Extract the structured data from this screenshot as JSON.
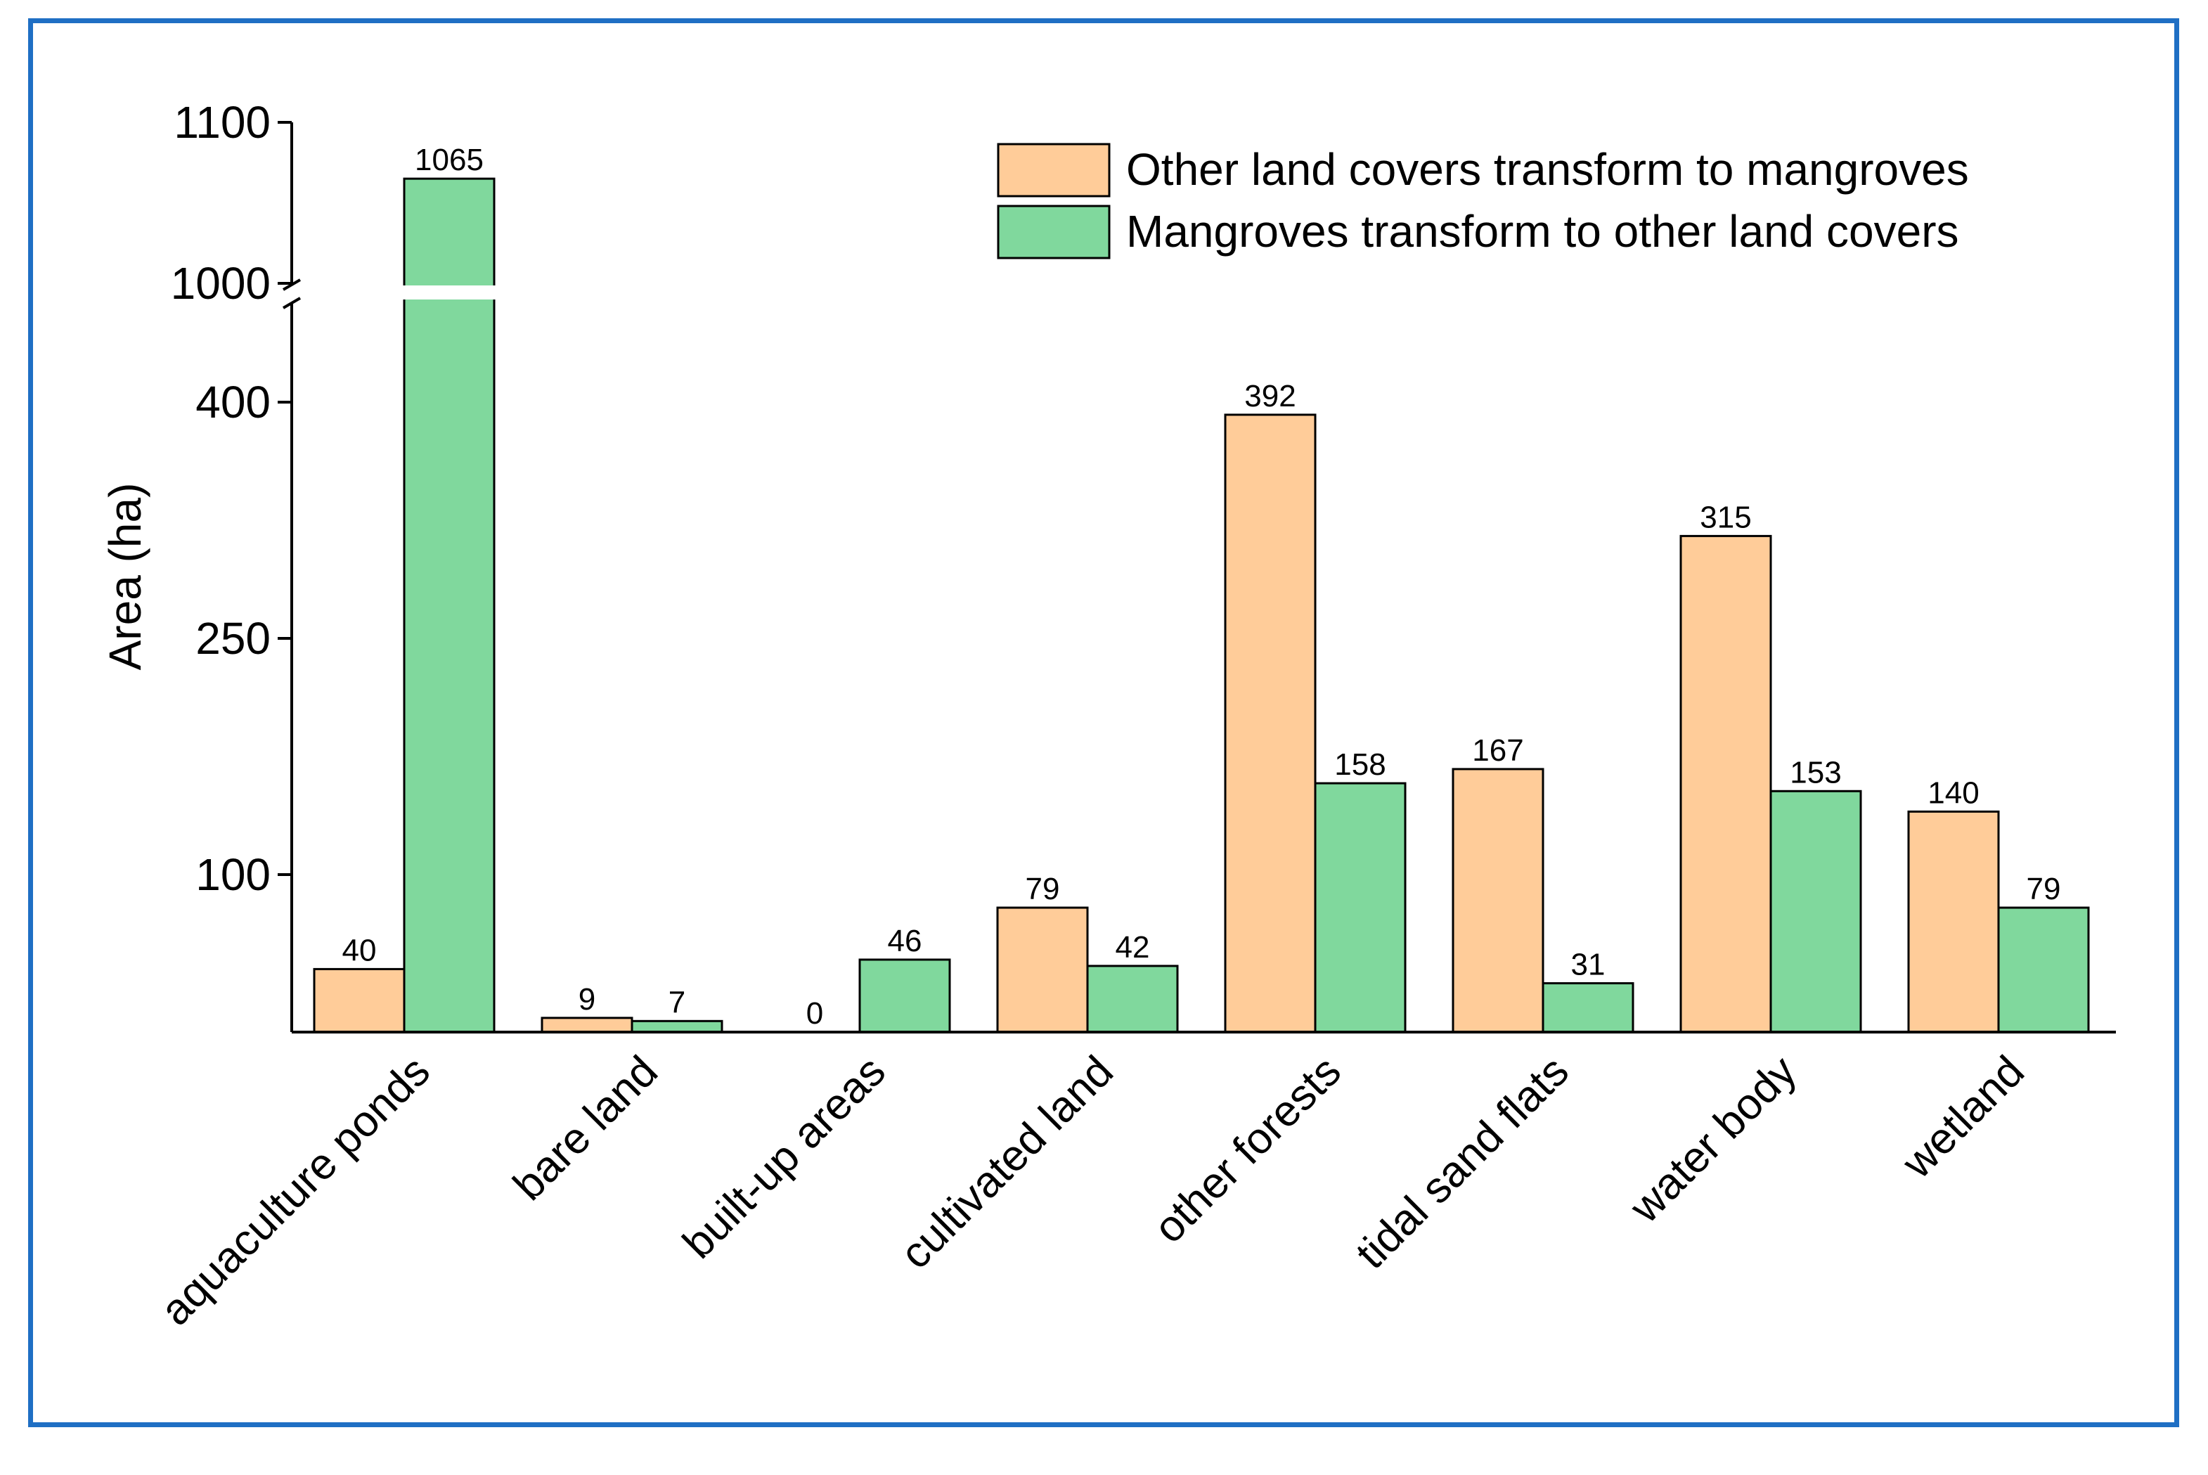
{
  "chart_data": {
    "type": "bar",
    "title": "",
    "xlabel": "",
    "ylabel": "Area (ha)",
    "ylim": [
      0,
      1100
    ],
    "y_axis_break": {
      "lower_max": 450,
      "upper_min": 1000,
      "upper_max": 1100
    },
    "y_ticks": [
      {
        "value": 100,
        "label": "100"
      },
      {
        "value": 250,
        "label": "250"
      },
      {
        "value": 400,
        "label": "400"
      },
      {
        "value": 1000,
        "label": "1000"
      },
      {
        "value": 1100,
        "label": "1100"
      }
    ],
    "categories": [
      "aquaculture ponds",
      "bare land",
      "built-up areas",
      "cultivated land",
      "other forests",
      "tidal sand flats",
      "water body",
      "wetland"
    ],
    "series": [
      {
        "name": "Other land covers transform to mangroves",
        "color": "#ffcc99",
        "values": [
          40,
          9,
          0,
          79,
          392,
          167,
          315,
          140
        ],
        "labels": [
          "40",
          "9",
          "0",
          "79",
          "392",
          "167",
          "315",
          "140"
        ]
      },
      {
        "name": "Mangroves transform to other land covers",
        "color": "#80d89d",
        "values": [
          1065,
          7,
          46,
          42,
          158,
          31,
          153,
          79
        ],
        "labels": [
          "1065",
          "7",
          "46",
          "42",
          "158",
          "31",
          "153",
          "79"
        ]
      }
    ],
    "legend": {
      "position": "top-right"
    }
  }
}
